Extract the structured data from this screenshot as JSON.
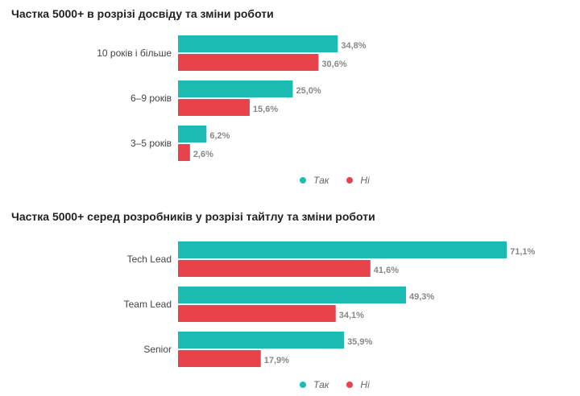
{
  "colors": {
    "yes": "#1dbcb3",
    "no": "#e8434a"
  },
  "chart_data": [
    {
      "type": "bar",
      "orientation": "horizontal",
      "title": "Частка 5000+ в розрізі досвіду та зміни роботи",
      "categories": [
        "10 років і більше",
        "6–9 років",
        "3–5 років"
      ],
      "series": [
        {
          "name": "Так",
          "values": [
            34.8,
            25.0,
            6.2
          ],
          "labels": [
            "34,8%",
            "25,0%",
            "6,2%"
          ]
        },
        {
          "name": "Ні",
          "values": [
            30.6,
            15.6,
            2.6
          ],
          "labels": [
            "30,6%",
            "15,6%",
            "2,6%"
          ]
        }
      ],
      "xlim": [
        0,
        100
      ],
      "legend_position": "bottom"
    },
    {
      "type": "bar",
      "orientation": "horizontal",
      "title": "Частка 5000+ серед розробників у розрізі тайтлу та зміни роботи",
      "categories": [
        "Tech Lead",
        "Team Lead",
        "Senior"
      ],
      "series": [
        {
          "name": "Так",
          "values": [
            71.1,
            49.3,
            35.9
          ],
          "labels": [
            "71,1%",
            "49,3%",
            "35,9%"
          ]
        },
        {
          "name": "Ні",
          "values": [
            41.6,
            34.1,
            17.9
          ],
          "labels": [
            "41,6%",
            "34,1%",
            "17,9%"
          ]
        }
      ],
      "xlim": [
        0,
        100
      ],
      "legend_position": "bottom"
    }
  ]
}
